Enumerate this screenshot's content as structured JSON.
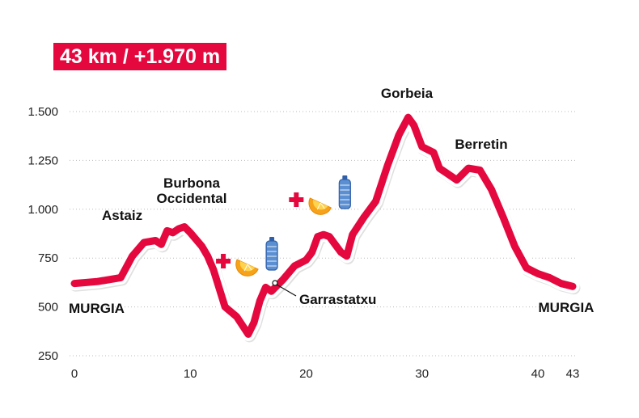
{
  "header": {
    "stats": "43 km / +1.970 m"
  },
  "colors": {
    "profile": "#e4083f",
    "badge": "#e4083f",
    "grid": "#bbbbbb",
    "text": "#111111"
  },
  "chart_data": {
    "type": "line",
    "title": "",
    "xlabel": "",
    "ylabel": "",
    "xlim": [
      0,
      43
    ],
    "ylim": [
      250,
      1500
    ],
    "grid": true,
    "x_ticks": [
      0,
      10,
      20,
      30,
      40,
      43
    ],
    "x_tick_labels": [
      "0",
      "10",
      "20",
      "30",
      "40",
      "43"
    ],
    "y_ticks": [
      250,
      500,
      750,
      1000,
      1250,
      1500
    ],
    "y_tick_labels": [
      "250",
      "500",
      "750",
      "1.000",
      "1.250",
      "1.500"
    ],
    "series": [
      {
        "x": [
          0,
          2,
          4,
          5,
          6,
          7,
          7.5,
          8,
          8.5,
          9,
          9.5,
          10,
          11,
          11.5,
          12,
          13,
          14,
          15,
          15.5,
          16,
          16.5,
          17,
          18,
          19,
          20,
          20.5,
          21,
          21.5,
          22,
          22.5,
          23,
          23.5,
          24,
          25,
          26,
          27,
          28,
          28.8,
          29.3,
          30,
          31,
          31.5,
          32,
          33,
          34,
          35,
          36,
          37,
          38,
          39,
          40,
          41,
          42,
          43
        ],
        "y": [
          620,
          630,
          650,
          760,
          830,
          840,
          820,
          890,
          880,
          900,
          910,
          880,
          810,
          760,
          690,
          500,
          450,
          360,
          420,
          530,
          600,
          580,
          640,
          710,
          740,
          780,
          860,
          870,
          860,
          820,
          780,
          760,
          870,
          960,
          1040,
          1220,
          1380,
          1470,
          1430,
          1320,
          1290,
          1210,
          1190,
          1150,
          1210,
          1200,
          1100,
          960,
          810,
          700,
          670,
          650,
          620,
          605
        ]
      }
    ],
    "annotations": [
      {
        "text": "MURGIA",
        "x": 0,
        "y": 620
      },
      {
        "text": "Astaiz",
        "x": 7.5,
        "y": 840
      },
      {
        "text": "Burbona",
        "x": 8.5,
        "y": 880
      },
      {
        "text": "Occidental",
        "x": 8.5,
        "y": 880
      },
      {
        "text": "Garrastatxu",
        "x": 17,
        "y": 600
      },
      {
        "text": "Gorbeia",
        "x": 29,
        "y": 1470
      },
      {
        "text": "Berretin",
        "x": 35,
        "y": 1210
      },
      {
        "text": "MURGIA",
        "x": 43,
        "y": 605
      }
    ],
    "aid_stations": [
      {
        "x": 16.2,
        "icons": [
          "first-aid",
          "orange-slice",
          "water-bottle"
        ]
      },
      {
        "x": 22.5,
        "icons": [
          "first-aid",
          "orange-slice",
          "water-bottle"
        ]
      }
    ]
  }
}
